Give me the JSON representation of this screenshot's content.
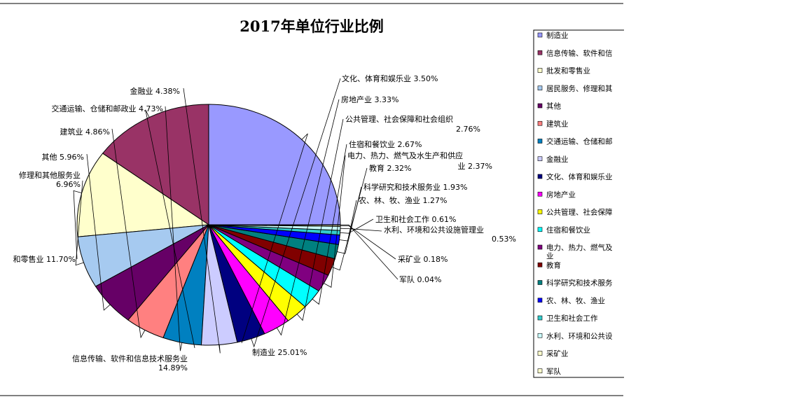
{
  "chart_data": {
    "type": "pie",
    "title": "2017年单位行业比例",
    "slices": [
      {
        "name": "制造业",
        "value": 25.01,
        "label_lines": [
          "制造业 25.01%"
        ],
        "color": "#9999FF"
      },
      {
        "name": "信息传输、软件和信息技术服务业",
        "value": 14.89,
        "label_lines": [
          "信息传输、软件和信息技术服务业",
          "14.89%"
        ],
        "color": "#993366"
      },
      {
        "name": "批发和零售业",
        "value": 11.7,
        "label_lines": [
          "和零售业 11.70%"
        ],
        "color": "#FFFFCC"
      },
      {
        "name": "居民服务、修理和其他服务业",
        "value": 6.96,
        "label_lines": [
          "修理和其他服务业",
          "6.96%"
        ],
        "color": "#A6CAF0"
      },
      {
        "name": "其他",
        "value": 5.96,
        "label_lines": [
          "其他 5.96%"
        ],
        "color": "#660066"
      },
      {
        "name": "建筑业",
        "value": 4.86,
        "label_lines": [
          "建筑业 4.86%"
        ],
        "color": "#FF8080"
      },
      {
        "name": "交通运输、仓储和邮政业",
        "value": 4.73,
        "label_lines": [
          "交通运输、仓储和邮政业 4.73%"
        ],
        "color": "#0080C0"
      },
      {
        "name": "金融业",
        "value": 4.38,
        "label_lines": [
          "金融业 4.38%"
        ],
        "color": "#CCCCFF"
      },
      {
        "name": "文化、体育和娱乐业",
        "value": 3.5,
        "label_lines": [
          "文化、体育和娱乐业 3.50%"
        ],
        "color": "#000080"
      },
      {
        "name": "房地产业",
        "value": 3.33,
        "label_lines": [
          "房地产业 3.33%"
        ],
        "color": "#FF00FF"
      },
      {
        "name": "公共管理、社会保障和社会组织",
        "value": 2.76,
        "label_lines": [
          "公共管理、社会保障和社会组织",
          "2.76%"
        ],
        "color": "#FFFF00"
      },
      {
        "name": "住宿和餐饮业",
        "value": 2.67,
        "label_lines": [
          "住宿和餐饮业 2.67%"
        ],
        "color": "#00FFFF"
      },
      {
        "name": "电力、热力、燃气及水生产和供应业",
        "value": 2.37,
        "label_lines": [
          "电力、热力、燃气及水生产和供应",
          "业 2.37%"
        ],
        "color": "#800080"
      },
      {
        "name": "教育",
        "value": 2.32,
        "label_lines": [
          "教育 2.32%"
        ],
        "color": "#800000"
      },
      {
        "name": "科学研究和技术服务业",
        "value": 1.93,
        "label_lines": [
          "科学研究和技术服务业 1.93%"
        ],
        "color": "#008080"
      },
      {
        "name": "农、林、牧、渔业",
        "value": 1.27,
        "label_lines": [
          "农、林、牧、渔业 1.27%"
        ],
        "color": "#0000FF"
      },
      {
        "name": "卫生和社会工作",
        "value": 0.61,
        "label_lines": [
          "卫生和社会工作 0.61%"
        ],
        "color": "#33CCCC"
      },
      {
        "name": "水利、环境和公共设施管理业",
        "value": 0.53,
        "label_lines": [
          "水利、环境和公共设施管理业",
          "0.53%"
        ],
        "color": "#CCFFFF"
      },
      {
        "name": "采矿业",
        "value": 0.18,
        "label_lines": [
          "采矿业 0.18%"
        ],
        "color": "#FFFFCC"
      },
      {
        "name": "军队",
        "value": 0.04,
        "label_lines": [
          "军队 0.04%"
        ],
        "color": "#FFFFCC"
      }
    ],
    "legend": {
      "placement": "right",
      "entries": [
        [
          "制造业"
        ],
        [
          "信息传输、软件和信"
        ],
        [
          "批发和零售业"
        ],
        [
          "居民服务、修理和其"
        ],
        [
          "其他"
        ],
        [
          "建筑业"
        ],
        [
          "交通运输、仓储和邮"
        ],
        [
          "金融业"
        ],
        [
          "文化、体育和娱乐业"
        ],
        [
          "房地产业"
        ],
        [
          "公共管理、社会保障"
        ],
        [
          "住宿和餐饮业"
        ],
        [
          "电力、热力、燃气及",
          "业"
        ],
        [
          "教育"
        ],
        [
          "科学研究和技术服务"
        ],
        [
          "农、林、牧、渔业"
        ],
        [
          "卫生和社会工作"
        ],
        [
          "水利、环境和公共设"
        ],
        [
          "采矿业"
        ],
        [
          "军队"
        ]
      ]
    }
  }
}
